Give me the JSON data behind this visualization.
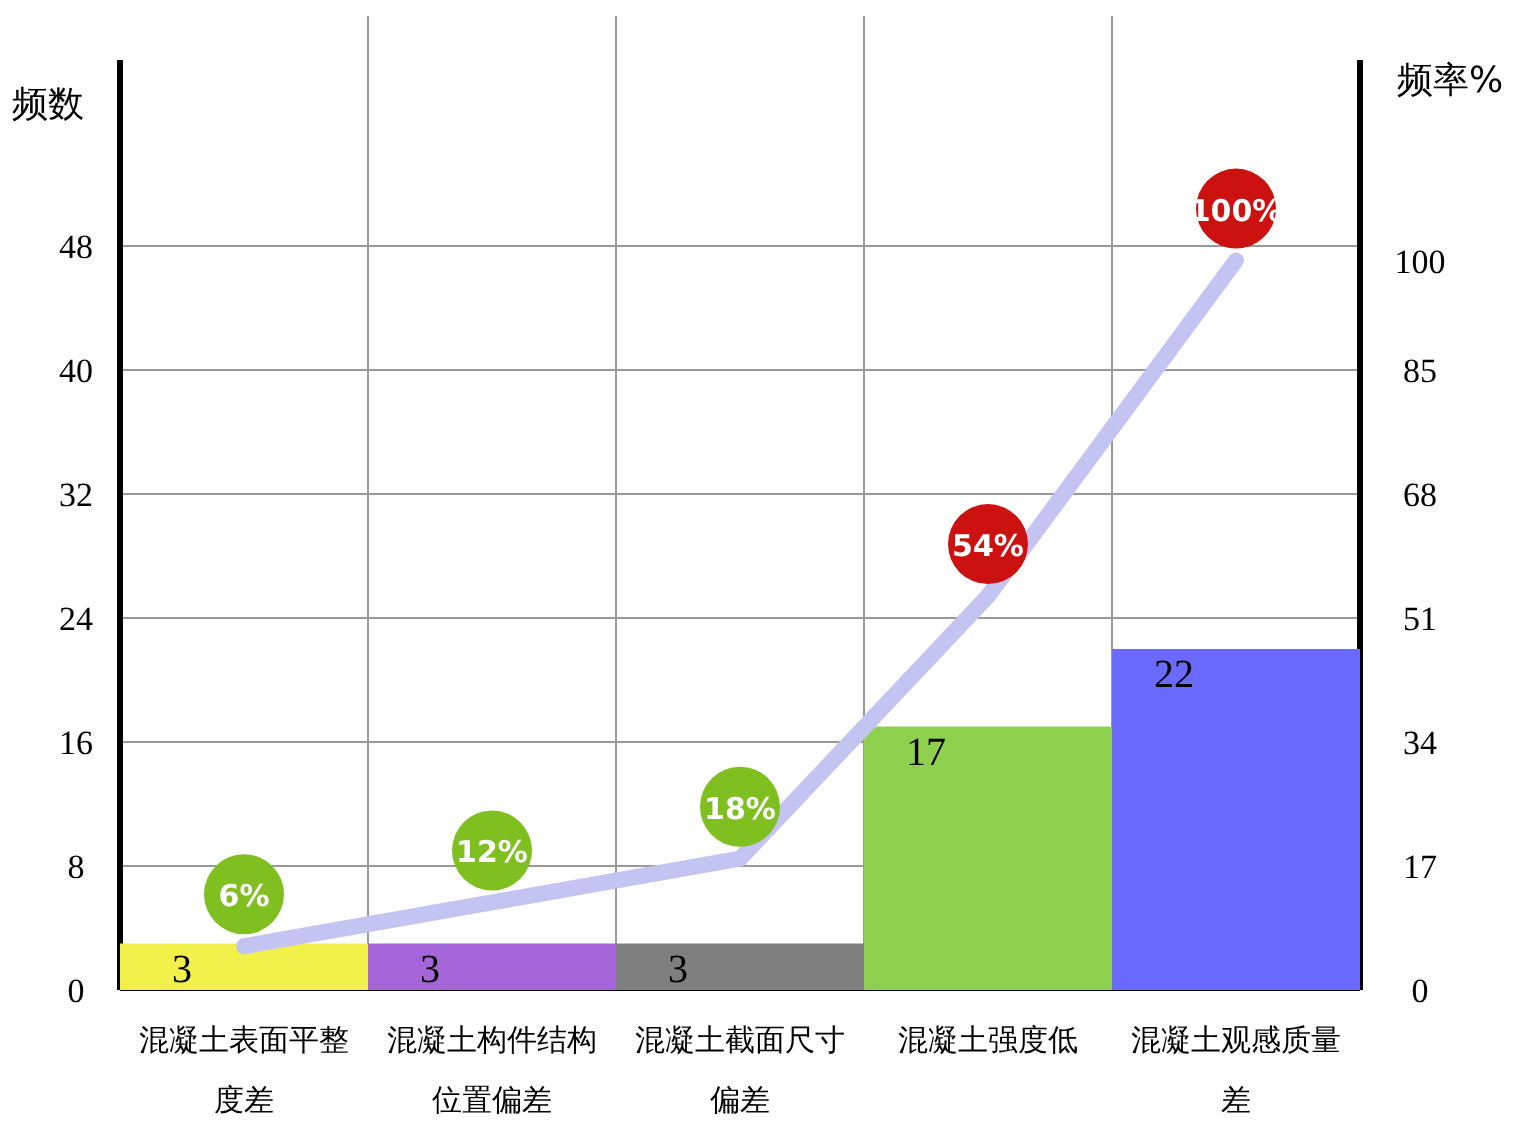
{
  "chart_data": {
    "type": "bar",
    "ylabel": "频数",
    "y2label": "频率%",
    "categories": [
      "混凝土表面平整度差",
      "混凝土构件结构位置偏差",
      "混凝土截面尺寸偏差",
      "混凝土强度低",
      "混凝土观感质量差"
    ],
    "ylim": [
      0,
      60
    ],
    "yticks": [
      0,
      8,
      16,
      24,
      32,
      40,
      48
    ],
    "y2lim": [
      0,
      127.5
    ],
    "y2ticks": [
      0,
      17,
      34,
      51,
      68,
      85,
      100
    ],
    "grid": true,
    "data_labels": true,
    "series": [
      {
        "values": [
          3,
          3,
          3,
          17,
          22
        ],
        "colors": [
          "#f2f04a",
          "#a466d8",
          "#7f7f7f",
          "#8fd14f",
          "#6a6aff"
        ]
      },
      {
        "type": "line",
        "axis": "y2",
        "color": "#c4c4f2",
        "values": [
          6,
          12,
          18,
          54,
          100
        ],
        "value_labels": [
          "6%",
          "12%",
          "18%",
          "54%",
          "100%"
        ],
        "colors": [
          "#7fbf1f",
          "#7fbf1f",
          "#7fbf1f",
          "#cc1111",
          "#cc1111"
        ]
      }
    ]
  }
}
